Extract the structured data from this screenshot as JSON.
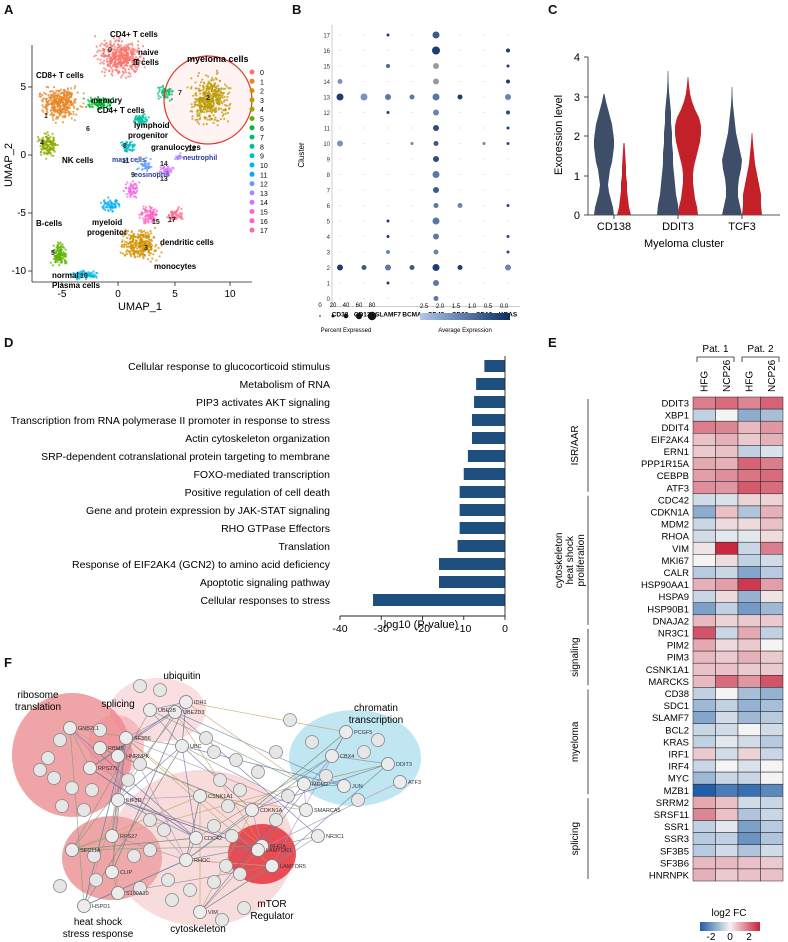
{
  "panels": {
    "a": "A",
    "b": "B",
    "c": "C",
    "d": "D",
    "e": "E",
    "f": "F"
  },
  "umap": {
    "xlabel": "UMAP_1",
    "ylabel": "UMAP_2",
    "xticks": [
      -5,
      0,
      5,
      10
    ],
    "yticks": [
      5,
      0,
      -5,
      -10
    ],
    "labels": {
      "cd4": "CD4+ T cells",
      "naive": "naive",
      "naive2": "T cells",
      "cd8": "CD8+ T cells",
      "myeloma": "myeloma cells",
      "memory": "memory",
      "memory2": "CD4+ T cells",
      "lymphoid": "lymphoid",
      "lymphoid2": "progenitor",
      "nk": "NK cells",
      "granulocytes": "granulocytes",
      "mast": "mast cells",
      "neutrophil": "neutrophil",
      "eosinophil": "eosinophil",
      "bcells": "B-cells",
      "myeloid": "myeloid",
      "myeloid2": "progenitor",
      "dendritic": "dendritic cells",
      "monocytes": "monocytes",
      "normal": "normal",
      "normal2": "Plasma cells"
    },
    "legend": [
      "0",
      "1",
      "2",
      "3",
      "4",
      "5",
      "6",
      "7",
      "8",
      "9",
      "10",
      "11",
      "12",
      "13",
      "14",
      "15",
      "16",
      "17"
    ],
    "colors": [
      "#f8766d",
      "#e88526",
      "#d39200",
      "#b79f00",
      "#93aa00",
      "#5eb300",
      "#00ba38",
      "#00bf74",
      "#00c19f",
      "#00bfc4",
      "#00b9e3",
      "#00adfa",
      "#619cff",
      "#ae87ff",
      "#db72fb",
      "#f564e3",
      "#ff61c3",
      "#ff6c91"
    ]
  },
  "dotplot": {
    "ylabel": "Cluster",
    "genes": [
      "CD38",
      "CD138",
      "SLAMF7",
      "BCMA",
      "CD45",
      "CD20",
      "CD19",
      "KRAS"
    ],
    "clusters": [
      "0",
      "1",
      "2",
      "3",
      "4",
      "5",
      "6",
      "7",
      "8",
      "9",
      "10",
      "11",
      "12",
      "13",
      "14",
      "15",
      "16",
      "17"
    ],
    "size_legend_values": [
      "0",
      "20",
      "40",
      "60",
      "80"
    ],
    "size_legend_title": "Percent Expressed",
    "color_legend_values": [
      "2.5",
      "2.0",
      "1.5",
      "1.0",
      "0.5",
      "0.0"
    ],
    "color_legend_title": "Average Expression"
  },
  "violin": {
    "ylabel": "Exoression level",
    "xlabel": "Myeloma cluster",
    "yticks": [
      "4",
      "3",
      "2",
      "1",
      "0"
    ],
    "categories": [
      "CD138",
      "DDIT3",
      "TCF3"
    ],
    "colors": {
      "a": "#3e4d68",
      "b": "#c4202a"
    }
  },
  "chart_data": {
    "type": "bar",
    "categories": [
      "Cellular response to glucocorticoid stimulus",
      "Metabolism of RNA",
      "PIP3 activates AKT signaling",
      "Transcription from RNA polymerase II promoter in response to stress",
      "Actin cytoskeleton organization",
      "SRP-dependent cotranslational protein targeting to membrane",
      "FOXO-mediated transcription",
      "Positive regulation of cell death",
      "Gene and protein expression by JAK-STAT signaling",
      "RHO GTPase Effectors",
      "Translation",
      "Response of EIF2AK4 (GCN2) to amino acid deficiency",
      "Apoptotic signaling pathway",
      "Cellular responses to stress"
    ],
    "values": [
      -5,
      -7,
      -7.5,
      -8,
      -8,
      -9,
      -10,
      -11,
      -11,
      -11,
      -11.5,
      -16,
      -16,
      -32
    ],
    "xlabel": "log10 (P-value)",
    "xticks": [
      "-40",
      "-30",
      "-20",
      "-10",
      "0"
    ],
    "xlim": [
      -40,
      0
    ],
    "color": "#1d4f7f"
  },
  "heatmap": {
    "groups": [
      "Pat. 1",
      "Pat. 2"
    ],
    "columns": [
      "HFG",
      "NCP26",
      "HFG",
      "NCP26"
    ],
    "sections": [
      {
        "name": "ISR/AAR",
        "genes": [
          "DDIT3",
          "XBP1",
          "DDIT4",
          "EIF2AK4",
          "ERN1",
          "PPP1R15A",
          "CEBPB",
          "ATF3"
        ]
      },
      {
        "name": "cytoskeleton heat shock proliferation",
        "line1": "cytoskeleton",
        "line2": "heat shock",
        "line3": "proliferation",
        "genes": [
          "CDC42",
          "CDKN1A",
          "MDM2",
          "RHOA",
          "VIM",
          "MKI67",
          "CALR",
          "HSP90AA1",
          "HSPA9",
          "HSP90B1",
          "DNAJA2"
        ]
      },
      {
        "name": "signaling",
        "genes": [
          "NR3C1",
          "PIM2",
          "PIM3",
          "CSNK1A1",
          "MARCKS"
        ]
      },
      {
        "name": "myeloma",
        "genes": [
          "CD38",
          "SDC1",
          "SLAMF7",
          "BCL2",
          "KRAS",
          "IRF1",
          "IRF4",
          "MYC",
          "MZB1"
        ]
      },
      {
        "name": "splicing",
        "genes": [
          "SRRM2",
          "SRSF11",
          "SSR1",
          "SSR3",
          "SF3B5",
          "SF3B6",
          "HNRNPK"
        ]
      }
    ],
    "values": [
      [
        1.4,
        1.6,
        1.3,
        1.7
      ],
      [
        -0.6,
        0,
        -1.2,
        -0.9
      ],
      [
        1.4,
        1.3,
        0.7,
        1.1
      ],
      [
        0.6,
        0.8,
        0.5,
        0.8
      ],
      [
        0.5,
        0.6,
        -0.6,
        -0.3
      ],
      [
        0.9,
        0.8,
        1.7,
        1.4
      ],
      [
        1.0,
        1.2,
        1.5,
        1.6
      ],
      [
        1.2,
        1.1,
        1.8,
        1.6
      ],
      [
        -0.4,
        -0.3,
        0.4,
        0.4
      ],
      [
        -1.2,
        0.6,
        -0.8,
        0.8
      ],
      [
        -0.5,
        0.3,
        0.3,
        0.6
      ],
      [
        -0.4,
        -0.2,
        -0.2,
        0.3
      ],
      [
        0.2,
        2.4,
        -0.5,
        1.4
      ],
      [
        0,
        0.3,
        -0.6,
        -0.4
      ],
      [
        -0.7,
        -0.5,
        -1.3,
        -0.7
      ],
      [
        0.8,
        1.0,
        2.2,
        1.0
      ],
      [
        -0.5,
        0.3,
        -1.1,
        0.2
      ],
      [
        -1.4,
        -0.6,
        -1.5,
        -1.0
      ],
      [
        0.7,
        0.4,
        0.5,
        0.5
      ],
      [
        1.9,
        -0.5,
        0.9,
        -0.6
      ],
      [
        0.9,
        0.3,
        0.5,
        0
      ],
      [
        0.7,
        0.5,
        0.8,
        0.5
      ],
      [
        0.6,
        0.6,
        0.5,
        0.5
      ],
      [
        0.7,
        1.6,
        1.1,
        1.9
      ],
      [
        -0.6,
        0,
        -0.9,
        -1.1
      ],
      [
        -1.0,
        -0.6,
        -1.1,
        -0.9
      ],
      [
        -1.3,
        -0.4,
        -1.0,
        -0.7
      ],
      [
        -0.5,
        -0.4,
        0,
        -0.4
      ],
      [
        -0.6,
        -0.2,
        -0.4,
        -0.7
      ],
      [
        0.5,
        -0.4,
        0.4,
        -0.5
      ],
      [
        -0.5,
        0,
        -0.3,
        0
      ],
      [
        -1.0,
        -0.5,
        -0.5,
        0
      ],
      [
        -2.6,
        -2.0,
        -2.2,
        -1.8
      ],
      [
        0.9,
        0.6,
        -0.4,
        -0.5
      ],
      [
        1.3,
        0.6,
        -0.8,
        -0.5
      ],
      [
        -0.6,
        -0.2,
        -1.4,
        -0.7
      ],
      [
        -0.7,
        -0.6,
        -1.6,
        -0.8
      ],
      [
        -0.7,
        -0.4,
        -0.8,
        -0.4
      ],
      [
        0.7,
        0.7,
        0.6,
        0.5
      ],
      [
        0.8,
        0.5,
        0.6,
        0.6
      ]
    ],
    "legend_title": "log2 FC",
    "legend_ticks": [
      "-2",
      "0",
      "2"
    ],
    "low_color": "#1f5ea8",
    "mid_color": "#f4f4f4",
    "high_color": "#c8203a"
  },
  "network": {
    "groups": {
      "ubiquitin": "ubiquitin",
      "splicing": "splicing",
      "ribosome": "ribosome",
      "translation": "translation",
      "chromatin": "chromatin",
      "transcription": "transcription",
      "heatshock": "heat shock",
      "stress": "stress response",
      "cytoskeleton": "cytoskeleton",
      "mtor": "mTOR",
      "regulator": "Regulator"
    },
    "nodes": [
      "IDH1",
      "UBE2B",
      "UBE2D3",
      "UBC",
      "SF3B6",
      "HNRNPK",
      "GNB2L1",
      "RBMX",
      "RPS27L",
      "EIF3D",
      "RPS27",
      "SEC11A",
      "CLIP",
      "S100A10",
      "HSPD1",
      "PCGF5",
      "CBX4",
      "DDIT3",
      "ATF3",
      "JUN",
      "MDM2",
      "SMARCA5",
      "NR3C1",
      "CSNK1A1",
      "CDKN1A",
      "CDC42",
      "RHOA",
      "RHOC",
      "VIM",
      "LAMTOR1",
      "LAMTOR5"
    ]
  }
}
